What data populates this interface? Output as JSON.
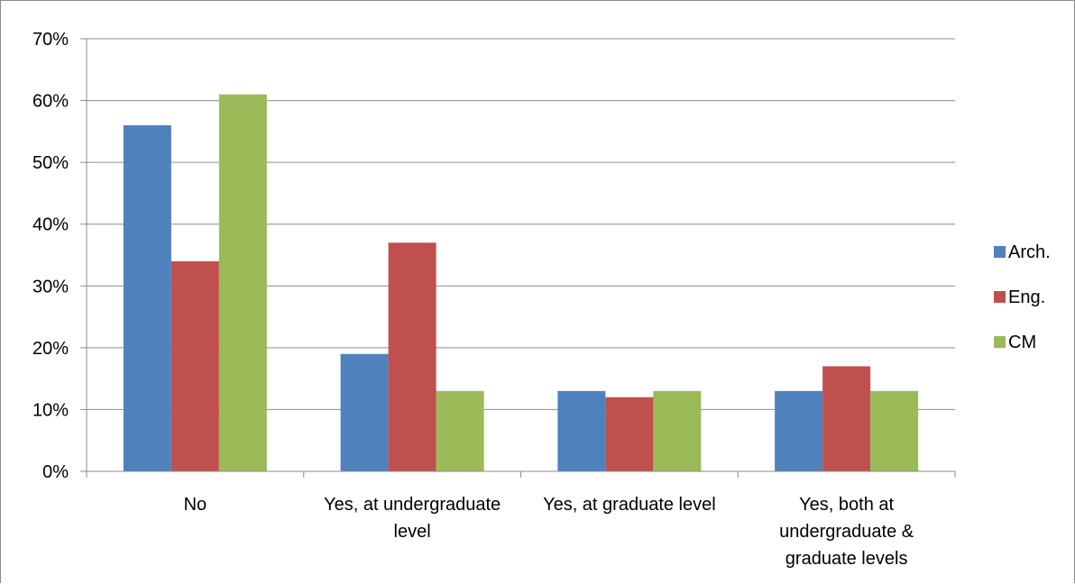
{
  "chart_data": {
    "type": "bar",
    "categories": [
      [
        "No"
      ],
      [
        "Yes, at undergraduate",
        "level"
      ],
      [
        "Yes, at graduate level"
      ],
      [
        "Yes, both at",
        "undergraduate &",
        "graduate levels"
      ]
    ],
    "series": [
      {
        "name": "Arch.",
        "color": "#4f81bd",
        "values": [
          56,
          19,
          13,
          13
        ]
      },
      {
        "name": "Eng.",
        "color": "#c0504d",
        "values": [
          34,
          37,
          12,
          17
        ]
      },
      {
        "name": "CM",
        "color": "#9bbb59",
        "values": [
          61,
          13,
          13,
          13
        ]
      }
    ],
    "ylim": [
      0,
      70
    ],
    "yticks": [
      "0%",
      "10%",
      "20%",
      "30%",
      "40%",
      "50%",
      "60%",
      "70%"
    ],
    "grid": true,
    "legend_position": "right"
  }
}
